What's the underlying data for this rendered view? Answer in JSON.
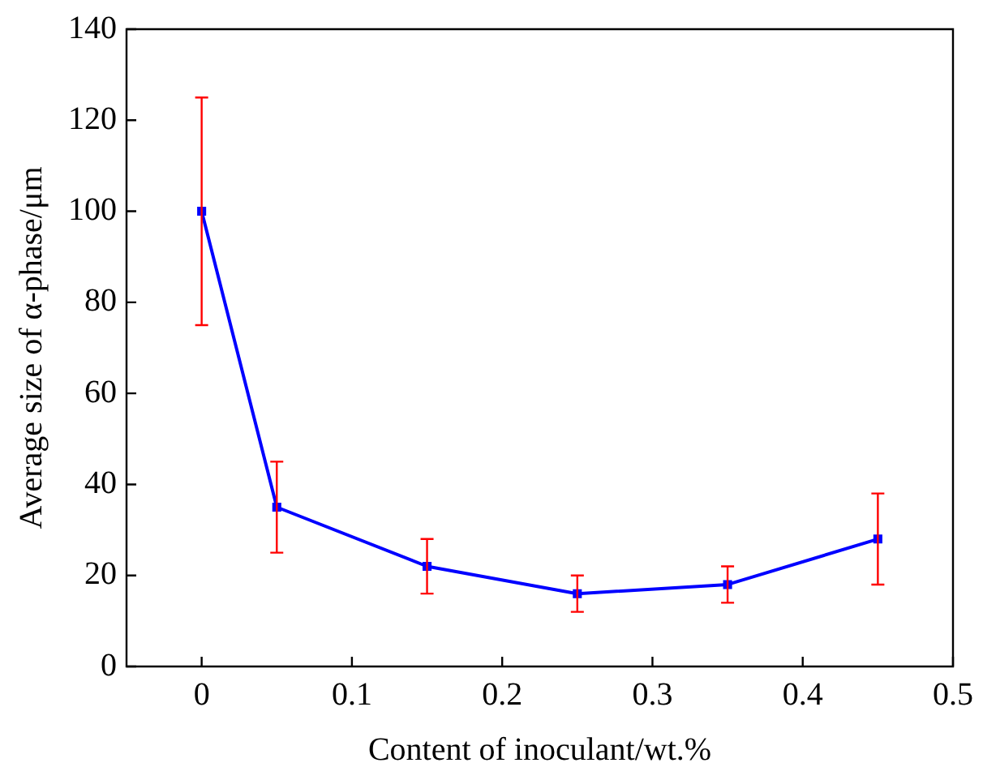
{
  "chart_data": {
    "type": "line",
    "xlabel": "Content of inoculant/wt.%",
    "ylabel": "Average size of α-phase/μm",
    "x": [
      0,
      0.05,
      0.15,
      0.25,
      0.35,
      0.45
    ],
    "series": [
      {
        "color": "#0000ff",
        "values": [
          100,
          35,
          22,
          16,
          18,
          28
        ],
        "errors": [
          25,
          10,
          6,
          4,
          4,
          10
        ]
      }
    ],
    "xlim": [
      -0.05,
      0.5
    ],
    "xticks": [
      0,
      0.1,
      0.2,
      0.3,
      0.4,
      0.5
    ],
    "ylim": [
      0,
      140
    ],
    "yticks": [
      0,
      20,
      40,
      60,
      80,
      100,
      120,
      140
    ],
    "grid": false,
    "legend": false,
    "marker": "square",
    "line_style": "solid"
  }
}
